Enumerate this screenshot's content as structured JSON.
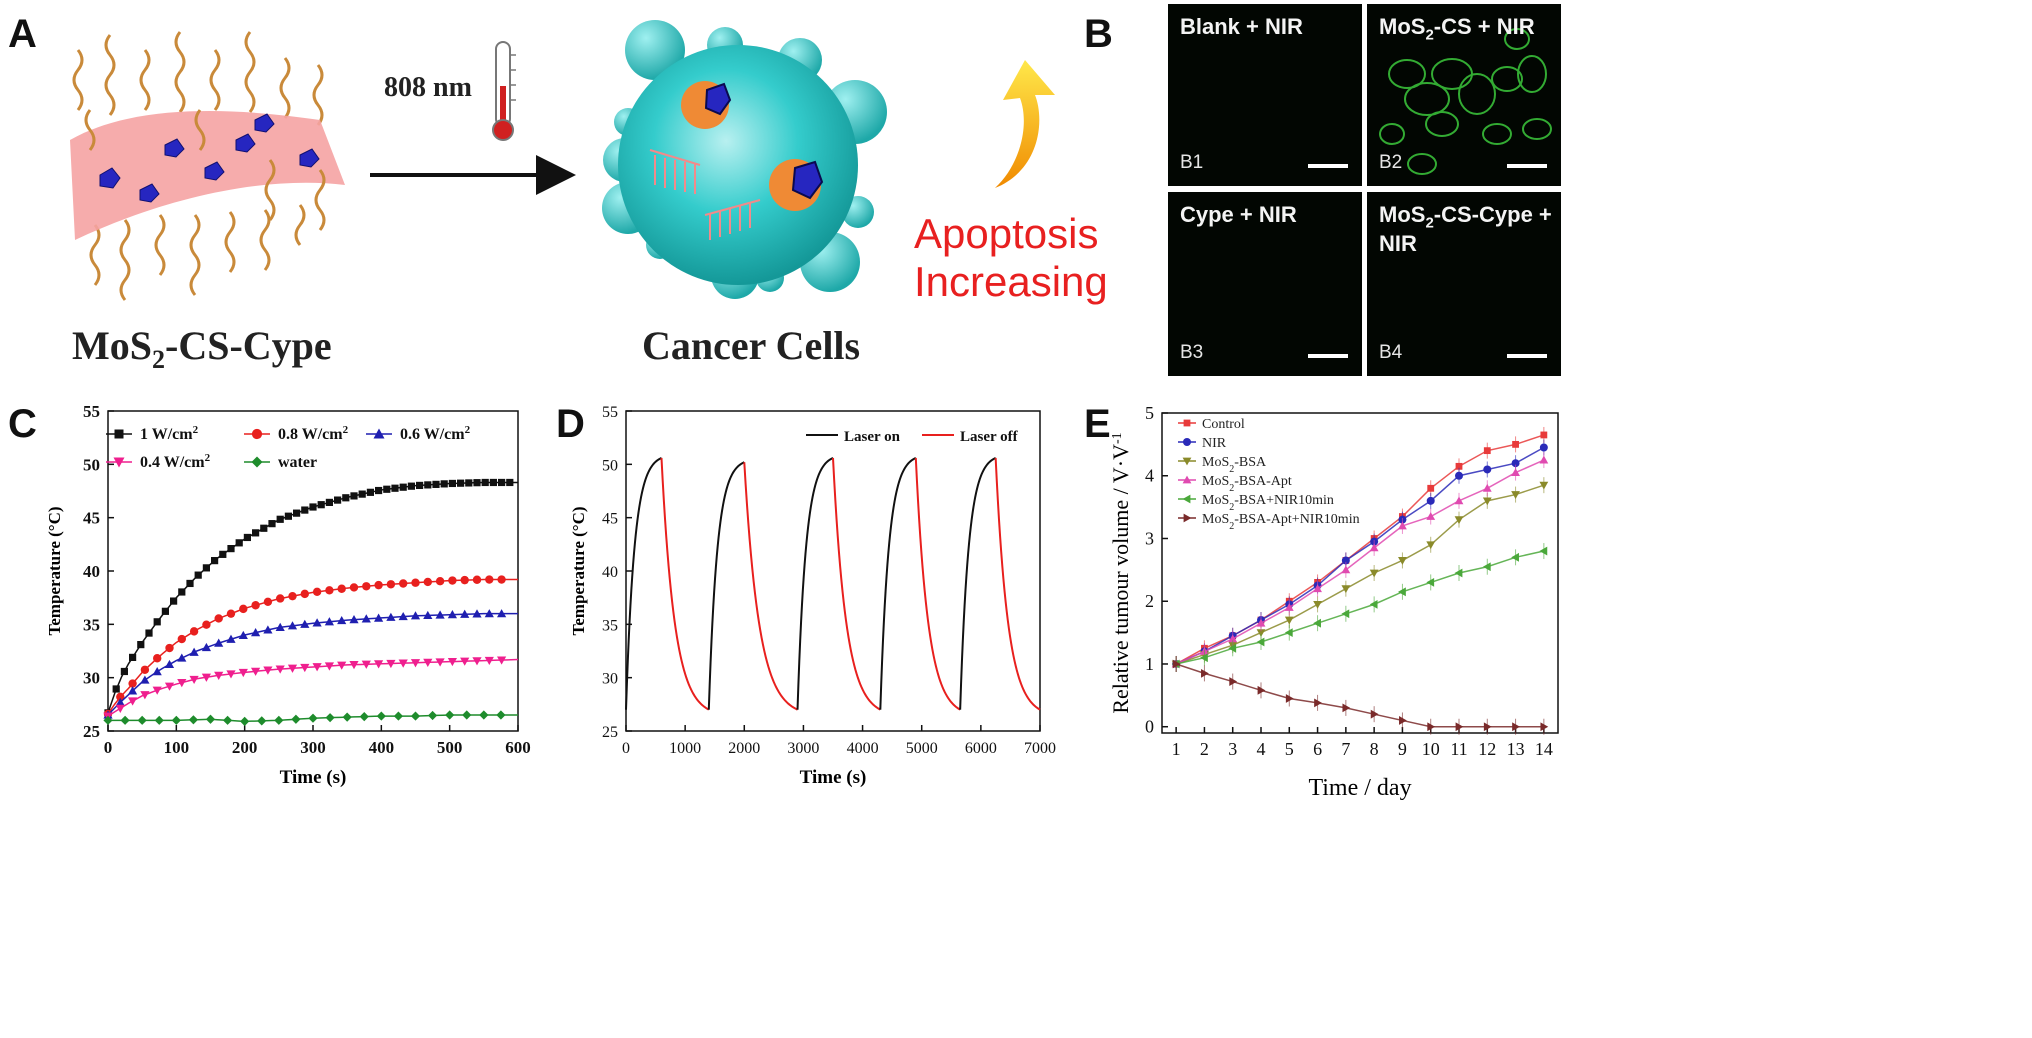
{
  "panels": {
    "A": {
      "label": "A",
      "wavelength": "808 nm",
      "material": "MoS",
      "material_sub": "2",
      "material_rest": "-CS-Cype",
      "target": "Cancer Cells",
      "effect_line1": "Apoptosis",
      "effect_line2": "Increasing"
    },
    "B": {
      "label": "B",
      "images": [
        {
          "pre": "Blank + NIR",
          "sub": "",
          "post": "",
          "index": "B1"
        },
        {
          "pre": "MoS",
          "sub": "2",
          "post": "-CS + NIR",
          "index": "B2"
        },
        {
          "pre": "Cype + NIR",
          "sub": "",
          "post": "",
          "index": "B3"
        },
        {
          "pre": "MoS",
          "sub": "2",
          "post": "-CS-Cype + NIR",
          "index": "B4"
        }
      ]
    },
    "C": {
      "label": "C"
    },
    "D": {
      "label": "D"
    },
    "E": {
      "label": "E"
    }
  },
  "colors": {
    "black": "#111111",
    "red": "#e8201e",
    "blue": "#1f1fb0",
    "magenta": "#ef1f8e",
    "green": "#1e8c2c",
    "control": "#e83a3a",
    "nir": "#2a2ab8",
    "olive": "#8a8a2a",
    "pink": "#e04ab0",
    "lightgreen": "#4aa83a",
    "brown": "#7a2a2a",
    "cyan": "#22c0c0",
    "arrow_yellow": "#f6c31a"
  },
  "chart_data": [
    {
      "type": "line",
      "panel": "C",
      "xlabel": "Time (s)",
      "ylabel": "Temperature (°C)",
      "xlim": [
        0,
        600
      ],
      "ylim": [
        25,
        55
      ],
      "xticks": [
        0,
        100,
        200,
        300,
        400,
        500,
        600
      ],
      "yticks": [
        25,
        30,
        35,
        40,
        45,
        50,
        55
      ],
      "legend": "top",
      "series": [
        {
          "name": "1 W/cm",
          "sup": "2",
          "color": "#111111",
          "marker": "square",
          "x": [
            0,
            15,
            30,
            50,
            75,
            100,
            130,
            160,
            200,
            250,
            300,
            350,
            400,
            450,
            500,
            550,
            600
          ],
          "y": [
            26.7,
            29.5,
            31.3,
            33.3,
            35.5,
            37.5,
            39.5,
            41.2,
            43.0,
            44.8,
            46.0,
            46.9,
            47.6,
            48.0,
            48.2,
            48.3,
            48.3
          ]
        },
        {
          "name": "0.8 W/cm",
          "sup": "2",
          "color": "#e8201e",
          "marker": "circle",
          "x": [
            0,
            15,
            30,
            50,
            75,
            100,
            130,
            160,
            200,
            250,
            300,
            350,
            400,
            450,
            500,
            550,
            600
          ],
          "y": [
            26.6,
            28.0,
            29.0,
            30.5,
            32.0,
            33.3,
            34.5,
            35.5,
            36.5,
            37.4,
            38.0,
            38.4,
            38.7,
            38.9,
            39.1,
            39.2,
            39.2
          ]
        },
        {
          "name": "0.6 W/cm",
          "sup": "2",
          "color": "#1f1fb0",
          "marker": "triangle",
          "x": [
            0,
            15,
            30,
            50,
            75,
            100,
            130,
            160,
            200,
            250,
            300,
            350,
            400,
            450,
            500,
            550,
            600
          ],
          "y": [
            26.5,
            27.5,
            28.4,
            29.6,
            30.7,
            31.6,
            32.5,
            33.2,
            34.0,
            34.7,
            35.1,
            35.4,
            35.6,
            35.8,
            35.9,
            36.0,
            36.0
          ]
        },
        {
          "name": "0.4 W/cm",
          "sup": "2",
          "color": "#ef1f8e",
          "marker": "triangle-down",
          "x": [
            0,
            15,
            30,
            50,
            75,
            100,
            130,
            160,
            200,
            250,
            300,
            350,
            400,
            450,
            500,
            550,
            600
          ],
          "y": [
            26.4,
            27.0,
            27.6,
            28.3,
            28.9,
            29.4,
            29.9,
            30.2,
            30.5,
            30.8,
            31.0,
            31.2,
            31.3,
            31.4,
            31.5,
            31.6,
            31.7
          ]
        },
        {
          "name": "water",
          "sup": "",
          "color": "#1e8c2c",
          "marker": "diamond",
          "x": [
            0,
            50,
            100,
            150,
            200,
            250,
            300,
            350,
            400,
            450,
            500,
            550,
            600
          ],
          "y": [
            26.0,
            26.0,
            26.0,
            26.1,
            25.9,
            26.0,
            26.2,
            26.3,
            26.4,
            26.4,
            26.5,
            26.5,
            26.5
          ]
        }
      ]
    },
    {
      "type": "line",
      "panel": "D",
      "xlabel": "Time (s)",
      "ylabel": "Temperature (°C)",
      "xlim": [
        0,
        7000
      ],
      "ylim": [
        25,
        55
      ],
      "xticks": [
        0,
        1000,
        2000,
        3000,
        4000,
        5000,
        6000,
        7000
      ],
      "yticks": [
        25,
        30,
        35,
        40,
        45,
        50,
        55
      ],
      "legend": "top-right",
      "cycles": [
        {
          "on_start": 0,
          "peak_time": 600,
          "off_end": 1400,
          "peak": 50.6,
          "base": 27.0
        },
        {
          "on_start": 1400,
          "peak_time": 2000,
          "off_end": 2900,
          "peak": 50.2,
          "base": 27.0
        },
        {
          "on_start": 2900,
          "peak_time": 3500,
          "off_end": 4300,
          "peak": 50.6,
          "base": 27.0
        },
        {
          "on_start": 4300,
          "peak_time": 4900,
          "off_end": 5650,
          "peak": 50.6,
          "base": 27.0
        },
        {
          "on_start": 5650,
          "peak_time": 6250,
          "off_end": 7000,
          "peak": 50.6,
          "base": 27.0
        }
      ],
      "series": [
        {
          "name": "Laser on",
          "color": "#111111"
        },
        {
          "name": "Laser off",
          "color": "#e8201e"
        }
      ]
    },
    {
      "type": "line",
      "panel": "E",
      "xlabel": "Time / day",
      "ylabel": "Relative tumour volume / V·V",
      "ylabel_sup": "-1",
      "xlim": [
        0.5,
        14.5
      ],
      "ylim": [
        -0.1,
        5
      ],
      "xticks": [
        1,
        2,
        3,
        4,
        5,
        6,
        7,
        8,
        9,
        10,
        11,
        12,
        13,
        14
      ],
      "yticks": [
        0,
        1,
        2,
        3,
        4,
        5
      ],
      "legend": "top-left",
      "x": [
        1,
        2,
        3,
        4,
        5,
        6,
        7,
        8,
        9,
        10,
        11,
        12,
        13,
        14
      ],
      "series": [
        {
          "name": "Control",
          "sub": "",
          "rest": "",
          "color": "#e83a3a",
          "marker": "square",
          "values": [
            1.0,
            1.25,
            1.45,
            1.7,
            2.0,
            2.3,
            2.65,
            3.0,
            3.35,
            3.8,
            4.15,
            4.4,
            4.5,
            4.65
          ]
        },
        {
          "name": "NIR",
          "sub": "",
          "rest": "",
          "color": "#2a2ab8",
          "marker": "circle",
          "values": [
            1.0,
            1.2,
            1.45,
            1.7,
            1.95,
            2.25,
            2.65,
            2.95,
            3.3,
            3.6,
            4.0,
            4.1,
            4.2,
            4.45
          ]
        },
        {
          "name": "MoS",
          "sub": "2",
          "rest": "-BSA",
          "color": "#8a8a2a",
          "marker": "triangle-down",
          "values": [
            1.0,
            1.15,
            1.3,
            1.5,
            1.7,
            1.95,
            2.2,
            2.45,
            2.65,
            2.9,
            3.3,
            3.6,
            3.7,
            3.85
          ]
        },
        {
          "name": "MoS",
          "sub": "2",
          "rest": "-BSA-Apt",
          "color": "#e04ab0",
          "marker": "triangle",
          "values": [
            1.0,
            1.2,
            1.4,
            1.65,
            1.9,
            2.2,
            2.5,
            2.85,
            3.2,
            3.35,
            3.6,
            3.8,
            4.05,
            4.25
          ]
        },
        {
          "name": "MoS",
          "sub": "2",
          "rest": "-BSA+NIR10min",
          "color": "#4aa83a",
          "marker": "triangle-left",
          "values": [
            1.0,
            1.1,
            1.25,
            1.35,
            1.5,
            1.65,
            1.8,
            1.95,
            2.15,
            2.3,
            2.45,
            2.55,
            2.7,
            2.8
          ]
        },
        {
          "name": "MoS",
          "sub": "2",
          "rest": "-BSA-Apt+NIR10min",
          "color": "#7a2a2a",
          "marker": "triangle-right",
          "values": [
            1.0,
            0.85,
            0.72,
            0.58,
            0.45,
            0.38,
            0.3,
            0.2,
            0.1,
            0.0,
            0.0,
            0.0,
            0.0,
            0.0
          ]
        }
      ]
    }
  ]
}
